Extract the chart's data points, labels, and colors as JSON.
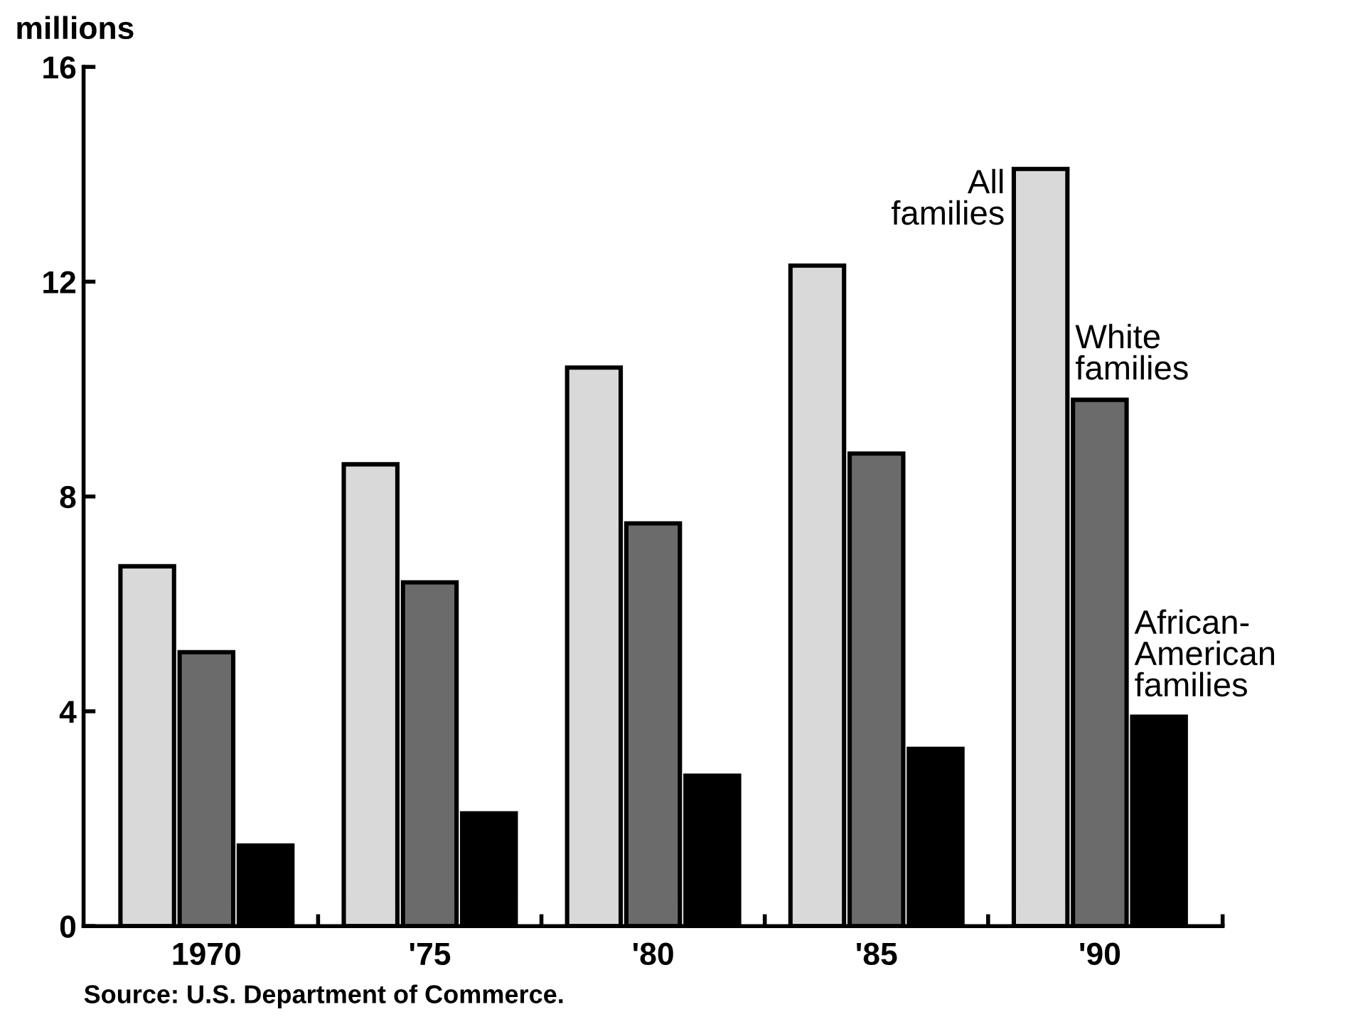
{
  "chart_data": {
    "type": "bar",
    "ylabel": "millions",
    "categories": [
      "1970",
      "'75",
      "'80",
      "'85",
      "'90"
    ],
    "series": [
      {
        "name": "All\nfamilies",
        "color": "#d9d9d9",
        "values": [
          6.7,
          8.6,
          10.4,
          12.3,
          14.1
        ]
      },
      {
        "name": "White\nfamilies",
        "color": "#6b6b6b",
        "values": [
          5.1,
          6.4,
          7.5,
          8.8,
          9.8
        ]
      },
      {
        "name": "African-\nAmerican\nfamilies",
        "color": "#000000",
        "values": [
          1.5,
          2.1,
          2.8,
          3.3,
          3.9
        ]
      }
    ],
    "ylim": [
      0,
      16
    ],
    "yticks": [
      0,
      4,
      8,
      12,
      16
    ],
    "grid": false,
    "legend": false,
    "annotations": [
      "Source: U.S. Department of Commerce."
    ]
  }
}
